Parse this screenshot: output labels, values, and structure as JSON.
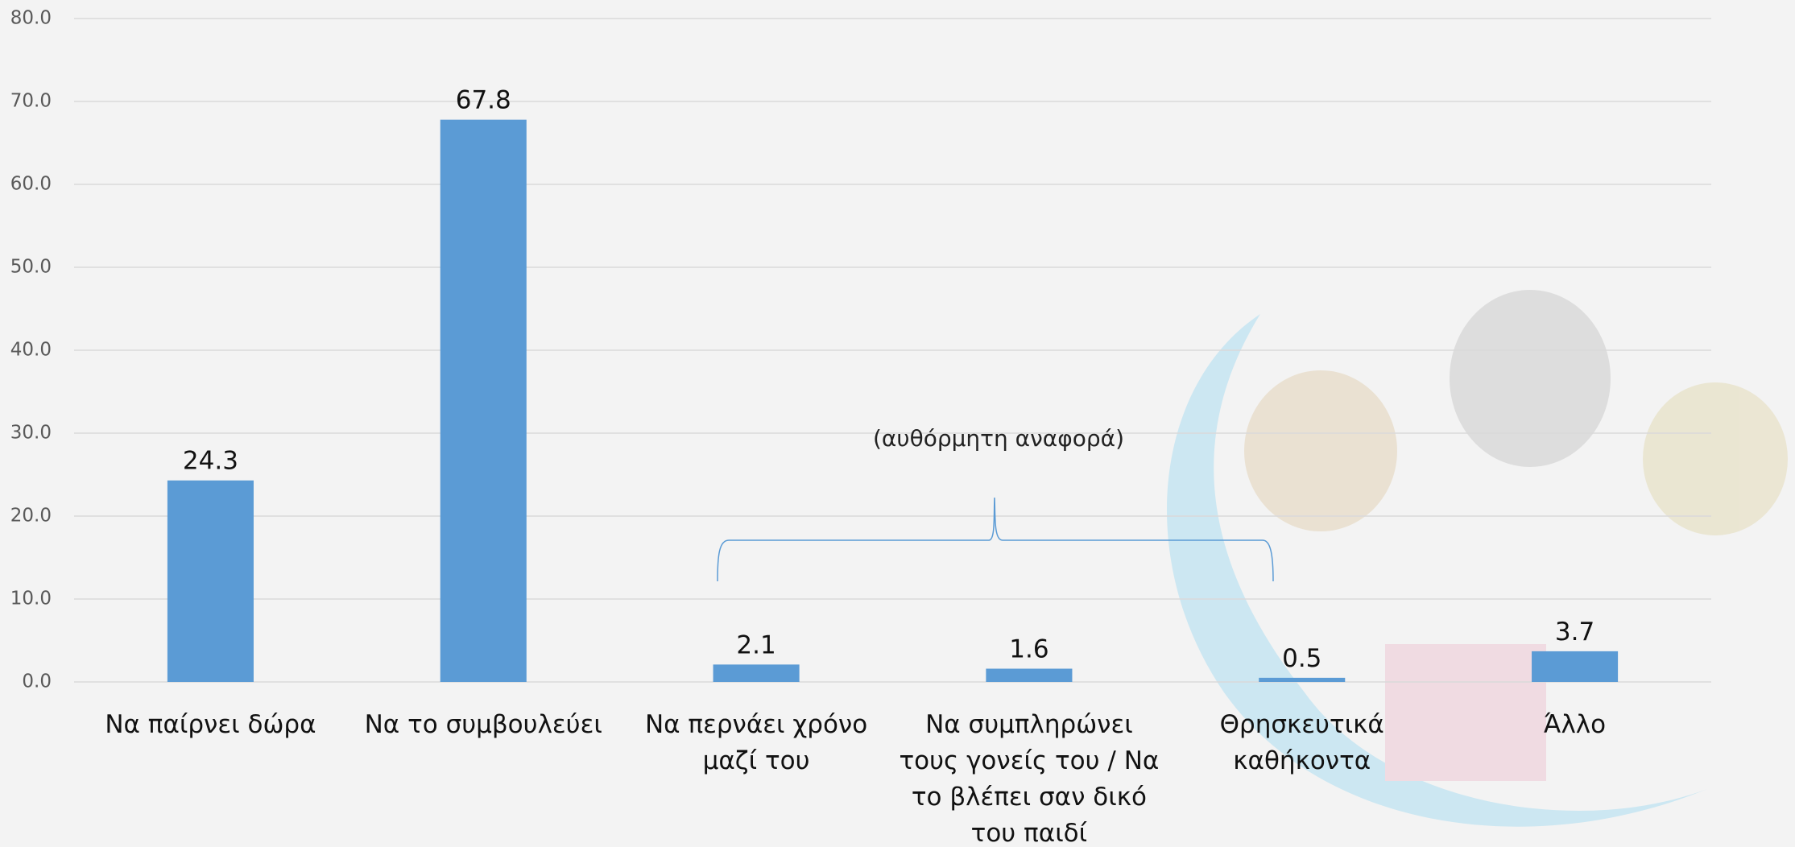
{
  "chart_data": {
    "type": "bar",
    "categories": [
      "Να παίρνει δώρα",
      "Να το συμβουλεύει",
      "Να περνάει χρόνο μαζί του",
      "Να συμπληρώνει τους γονείς του / Να το βλέπει σαν δικό του παιδί",
      "Θρησκευτικά καθήκοντα",
      "Άλλο"
    ],
    "values": [
      24.3,
      67.8,
      2.1,
      1.6,
      0.5,
      3.7
    ],
    "color": "#5b9bd5",
    "ylim": [
      0,
      80
    ],
    "yticks": [
      {
        "value": 0,
        "label": "0.0"
      },
      {
        "value": 10,
        "label": "10.0"
      },
      {
        "value": 20,
        "label": "20.0"
      },
      {
        "value": 30,
        "label": "30.0"
      },
      {
        "value": 40,
        "label": "40.0"
      },
      {
        "value": 50,
        "label": "50.0"
      },
      {
        "value": 60,
        "label": "60.0"
      },
      {
        "value": 70,
        "label": "70.0"
      },
      {
        "value": 80,
        "label": "80.0"
      }
    ],
    "grid": true,
    "annotation": "(αυθόρμητη αναφορά)"
  }
}
